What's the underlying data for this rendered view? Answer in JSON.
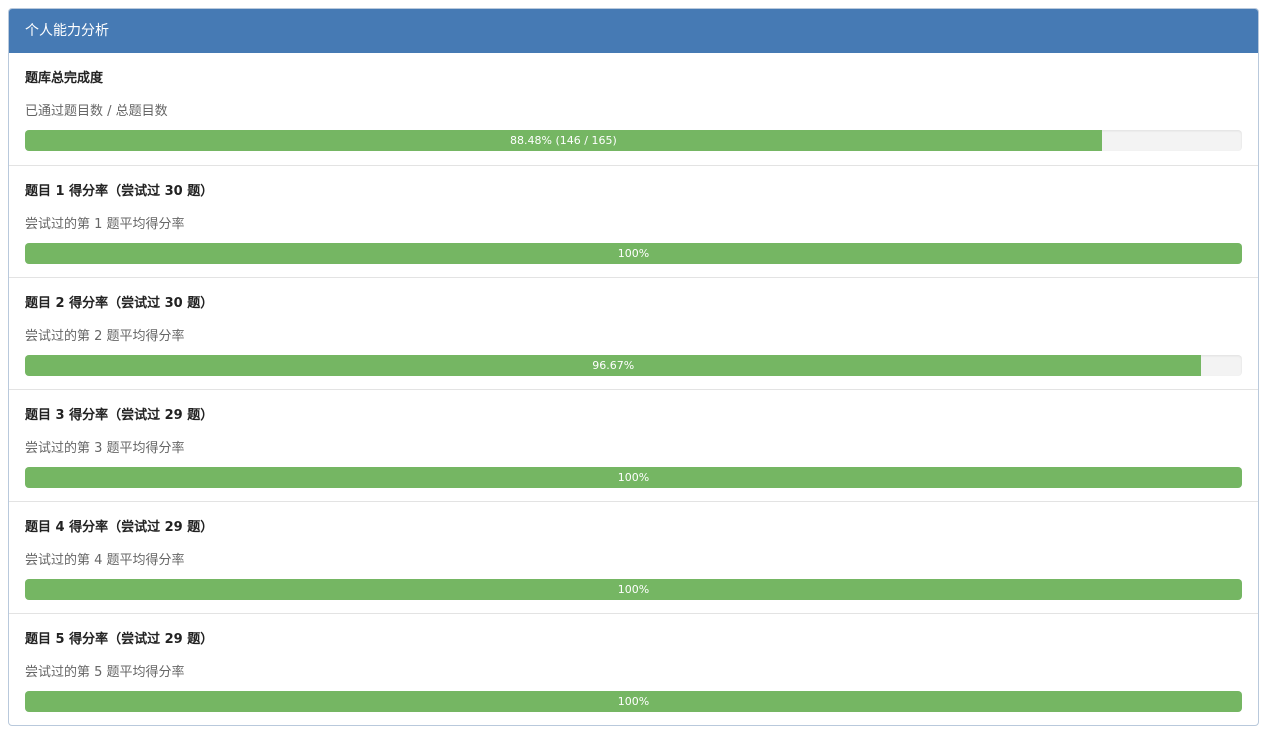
{
  "panel": {
    "title": "个人能力分析",
    "items": [
      {
        "title": "题库总完成度",
        "subtitle": "已通过题目数 / 总题目数",
        "percent": 88.48,
        "label": "88.48% (146 / 165)"
      },
      {
        "title": "题目 1 得分率（尝试过 30 题）",
        "subtitle": "尝试过的第 1 题平均得分率",
        "percent": 100,
        "label": "100%"
      },
      {
        "title": "题目 2 得分率（尝试过 30 题）",
        "subtitle": "尝试过的第 2 题平均得分率",
        "percent": 96.67,
        "label": "96.67%"
      },
      {
        "title": "题目 3 得分率（尝试过 29 题）",
        "subtitle": "尝试过的第 3 题平均得分率",
        "percent": 100,
        "label": "100%"
      },
      {
        "title": "题目 4 得分率（尝试过 29 题）",
        "subtitle": "尝试过的第 4 题平均得分率",
        "percent": 100,
        "label": "100%"
      },
      {
        "title": "题目 5 得分率（尝试过 29 题）",
        "subtitle": "尝试过的第 5 题平均得分率",
        "percent": 100,
        "label": "100%"
      }
    ]
  }
}
